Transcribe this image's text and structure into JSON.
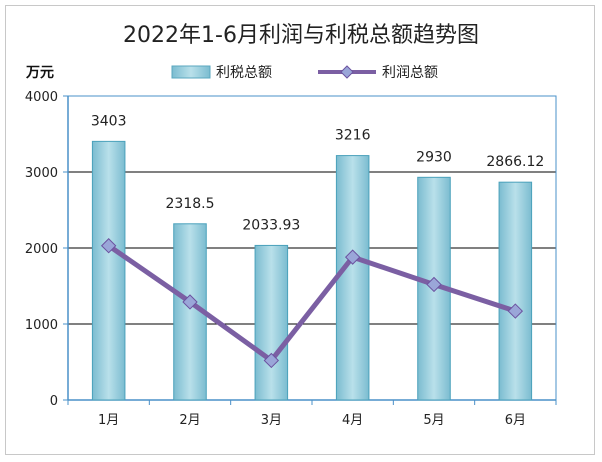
{
  "chart_data": {
    "type": "bar+line",
    "title": "2022年1-6月利润与利税总额趋势图",
    "y_unit": "万元",
    "categories": [
      "1月",
      "2月",
      "3月",
      "4月",
      "5月",
      "6月"
    ],
    "ylim": [
      0,
      4000
    ],
    "yticks": [
      0,
      1000,
      2000,
      3000,
      4000
    ],
    "grid": true,
    "legend_position": "top",
    "series": [
      {
        "name": "利税总额",
        "type": "bar",
        "color": "#9ecedd",
        "values": [
          3403,
          2318.5,
          2033.93,
          3216,
          2930,
          2866.12
        ],
        "labels": [
          "3403",
          "2318.5",
          "2033.93",
          "3216",
          "2930",
          "2866.12"
        ]
      },
      {
        "name": "利润总额",
        "type": "line",
        "color": "#7b5fa3",
        "values": [
          2030,
          1290,
          520,
          1880,
          1520,
          1170
        ]
      }
    ]
  }
}
